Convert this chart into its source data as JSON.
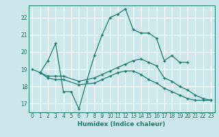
{
  "title": "",
  "xlabel": "Humidex (Indice chaleur)",
  "ylabel": "",
  "background_color": "#cce8ec",
  "line_color": "#1a7a6e",
  "grid_color": "#ffffff",
  "xlim": [
    -0.5,
    23.5
  ],
  "ylim": [
    16.5,
    22.7
  ],
  "yticks": [
    17,
    18,
    19,
    20,
    21,
    22
  ],
  "xticks": [
    0,
    1,
    2,
    3,
    4,
    5,
    6,
    7,
    8,
    9,
    10,
    11,
    12,
    13,
    14,
    15,
    16,
    17,
    18,
    19,
    20,
    21,
    22,
    23
  ],
  "lines": [
    {
      "x": [
        0,
        1,
        2,
        3,
        4,
        5,
        6,
        7,
        8,
        9,
        10,
        11,
        12,
        13,
        14,
        15,
        16,
        17,
        18,
        19,
        20
      ],
      "y": [
        19.0,
        18.8,
        19.5,
        20.5,
        17.7,
        17.7,
        16.7,
        18.3,
        19.8,
        21.0,
        22.0,
        22.2,
        22.5,
        21.3,
        21.1,
        21.1,
        20.8,
        19.5,
        19.8,
        19.4,
        19.4
      ]
    },
    {
      "x": [
        1,
        2,
        3,
        4,
        6,
        8,
        9,
        10,
        11,
        12,
        13,
        14,
        15,
        16,
        17,
        18,
        19,
        20,
        21,
        22,
        23
      ],
      "y": [
        18.8,
        18.6,
        18.6,
        18.6,
        18.3,
        18.5,
        18.7,
        18.9,
        19.1,
        19.3,
        19.5,
        19.6,
        19.4,
        19.2,
        18.5,
        18.3,
        18.0,
        17.8,
        17.5,
        17.3,
        17.2
      ]
    },
    {
      "x": [
        1,
        2,
        3,
        4,
        6,
        8,
        9,
        10,
        11,
        12,
        13,
        14,
        15,
        16,
        17,
        18,
        19,
        20,
        21,
        22,
        23
      ],
      "y": [
        18.8,
        18.5,
        18.4,
        18.4,
        18.1,
        18.2,
        18.4,
        18.6,
        18.8,
        18.9,
        18.9,
        18.7,
        18.4,
        18.2,
        17.9,
        17.7,
        17.5,
        17.3,
        17.2,
        17.2,
        17.2
      ]
    }
  ]
}
